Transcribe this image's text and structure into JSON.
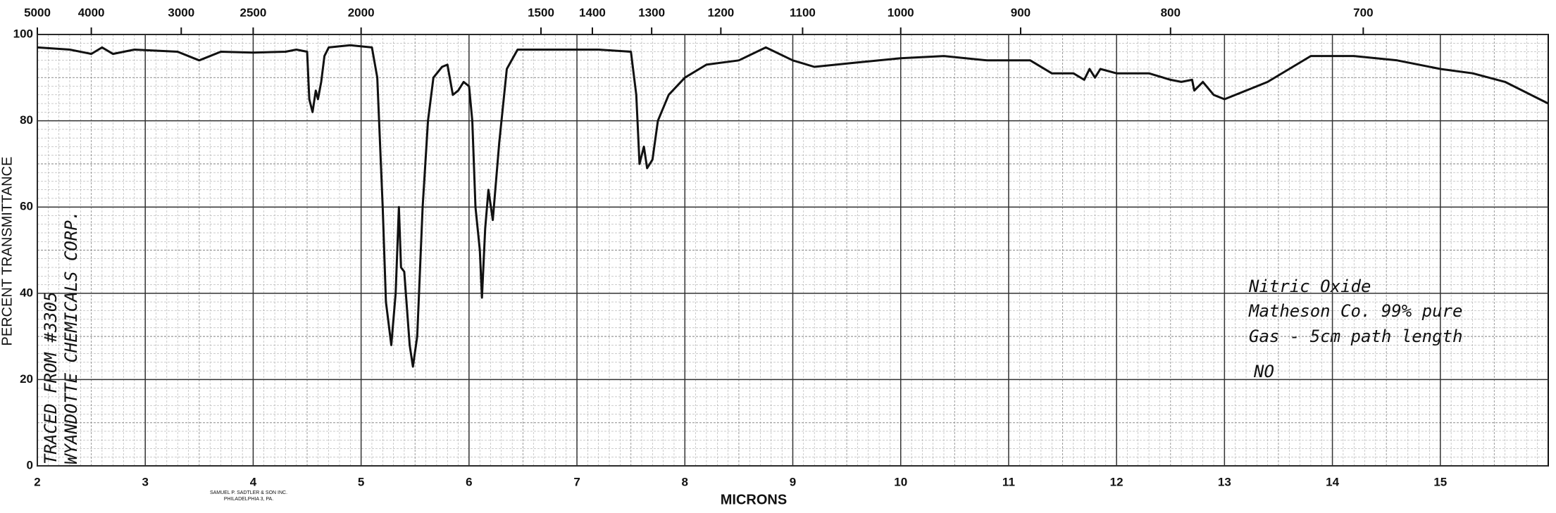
{
  "chart_data": {
    "type": "line",
    "x_label": "MICRONS",
    "y_label": "PERCENT TRANSMITTANCE",
    "xlim": [
      2,
      16
    ],
    "ylim": [
      0,
      100
    ],
    "xticks": [
      2,
      3,
      4,
      5,
      6,
      7,
      8,
      9,
      10,
      11,
      12,
      13,
      14,
      15
    ],
    "yticks": [
      0,
      20,
      40,
      60,
      80,
      100
    ],
    "x2ticks": [
      5000,
      4000,
      3000,
      2500,
      2000,
      1500,
      1400,
      1300,
      1200,
      1100,
      1000,
      900,
      800,
      700
    ],
    "grid": true,
    "annotations": [
      "TRACED FROM #3305",
      "WYANDOTTE CHEMICALS CORP.",
      "Nitric Oxide",
      "Matheson Co. 99% pure",
      "Gas - 5cm path length",
      "NO"
    ],
    "footer": [
      "SAMUEL P. SADTLER & SON INC.",
      "PHILADELPHIA 3, PA."
    ],
    "series": [
      {
        "name": "NO",
        "color": "#111111",
        "x": [
          2.0,
          2.3,
          2.5,
          2.6,
          2.7,
          2.9,
          3.3,
          3.5,
          3.7,
          4.0,
          4.3,
          4.4,
          4.5,
          4.52,
          4.55,
          4.58,
          4.6,
          4.63,
          4.66,
          4.7,
          4.9,
          5.1,
          5.15,
          5.2,
          5.23,
          5.28,
          5.32,
          5.35,
          5.37,
          5.4,
          5.45,
          5.48,
          5.52,
          5.57,
          5.62,
          5.67,
          5.75,
          5.8,
          5.85,
          5.9,
          5.95,
          6.0,
          6.03,
          6.06,
          6.1,
          6.12,
          6.15,
          6.18,
          6.22,
          6.28,
          6.35,
          6.45,
          6.8,
          7.2,
          7.5,
          7.55,
          7.58,
          7.62,
          7.65,
          7.7,
          7.75,
          7.85,
          8.0,
          8.2,
          8.5,
          8.75,
          9.0,
          9.2,
          9.6,
          10.0,
          10.4,
          10.8,
          11.2,
          11.4,
          11.6,
          11.7,
          11.75,
          11.8,
          11.85,
          12.0,
          12.3,
          12.5,
          12.6,
          12.7,
          12.72,
          12.8,
          12.9,
          13.0,
          13.4,
          13.8,
          14.2,
          14.6,
          15.0,
          15.3,
          15.6,
          16.0
        ],
        "values": [
          97,
          96.5,
          95.5,
          97,
          95.5,
          96.5,
          96,
          94,
          96,
          95.8,
          96,
          96.5,
          96,
          85,
          82,
          87,
          85,
          89,
          95,
          97,
          97.5,
          97,
          90,
          60,
          38,
          28,
          40,
          60,
          46,
          45,
          28,
          23,
          30,
          60,
          80,
          90,
          92.5,
          93,
          86,
          87,
          89,
          88,
          80,
          60,
          50,
          39,
          55,
          64,
          57,
          75,
          92,
          96.5,
          96.5,
          96.5,
          96,
          86,
          70,
          74,
          69,
          71,
          80,
          86,
          90,
          93,
          94,
          97,
          94,
          92.5,
          93.5,
          94.5,
          95,
          94,
          94,
          91,
          91,
          89.5,
          92,
          90,
          92,
          91,
          91,
          89.5,
          89,
          89.5,
          87,
          89,
          86,
          85,
          89,
          95,
          95,
          94,
          92,
          91,
          89,
          84
        ]
      }
    ]
  }
}
